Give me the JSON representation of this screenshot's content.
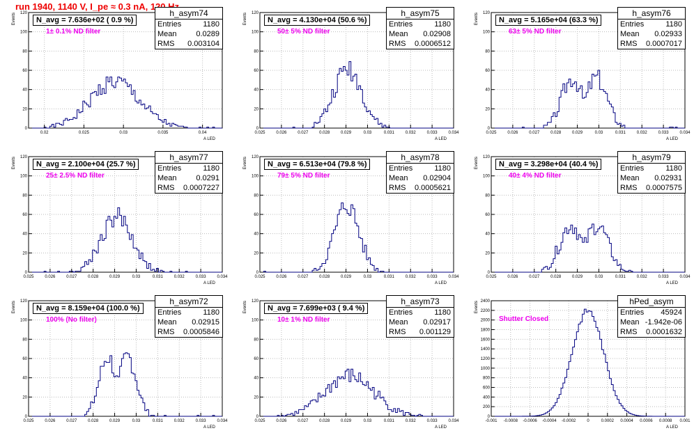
{
  "page_title": "run 1940,  1140 V, I_pe ≈ 0.3 nA, 120 Hz",
  "stats_labels": {
    "entries": "Entries",
    "mean": "Mean",
    "rms": "RMS"
  },
  "colors": {
    "histogram": "#000080",
    "title": "#ee0000",
    "note": "#ee00ee",
    "grid": "#bbbbbb"
  },
  "panels": [
    {
      "name": "h_asym74",
      "navg": "N_avg = 7.636e+02 ( 0.9 %)",
      "filter": "1± 0.1% ND filter",
      "entries": "1180",
      "mean": "0.0289",
      "rms": "0.003104"
    },
    {
      "name": "h_asym75",
      "navg": "N_avg = 4.130e+04 (50.6 %)",
      "filter": "50± 5% ND filter",
      "entries": "1180",
      "mean": "0.02908",
      "rms": "0.0006512"
    },
    {
      "name": "h_asym76",
      "navg": "N_avg = 5.165e+04 (63.3 %)",
      "filter": "63± 5% ND filter",
      "entries": "1180",
      "mean": "0.02933",
      "rms": "0.0007017"
    },
    {
      "name": "h_asym77",
      "navg": "N_avg = 2.100e+04 (25.7 %)",
      "filter": "25± 2.5% ND filter",
      "entries": "1180",
      "mean": "0.0291",
      "rms": "0.0007227"
    },
    {
      "name": "h_asym78",
      "navg": "N_avg = 6.513e+04 (79.8 %)",
      "filter": "79± 5% ND filter",
      "entries": "1180",
      "mean": "0.02904",
      "rms": "0.0005621"
    },
    {
      "name": "h_asym79",
      "navg": "N_avg = 3.298e+04 (40.4 %)",
      "filter": "40± 4% ND filter",
      "entries": "1180",
      "mean": "0.02931",
      "rms": "0.0007575"
    },
    {
      "name": "h_asym72",
      "navg": "N_avg = 8.159e+04 (100.0 %)",
      "filter": "100% (No filter)",
      "entries": "1180",
      "mean": "0.02915",
      "rms": "0.0005846"
    },
    {
      "name": "h_asym73",
      "navg": "N_avg = 7.699e+03 ( 9.4 %)",
      "filter": "10± 1% ND filter",
      "entries": "1180",
      "mean": "0.02917",
      "rms": "0.001129"
    },
    {
      "name": "hPed_asym",
      "navg": "",
      "filter": "Shutter Closed",
      "entries": "45924",
      "mean": "-1.942e-06",
      "rms": "0.0001632"
    }
  ],
  "chart_data": [
    {
      "type": "histogram",
      "name": "h_asym74",
      "ylabel": "Events",
      "xlabel": "A_LED",
      "xlim": [
        0.018,
        0.0425
      ],
      "ylim": [
        0,
        120
      ],
      "xticks": [
        0.02,
        0.025,
        0.03,
        0.035,
        0.04
      ],
      "xticklabels": [
        "0.02",
        "0.025",
        "0.03",
        "0.035",
        "0.04"
      ],
      "yticks": [
        0,
        20,
        40,
        60,
        80,
        100,
        120
      ],
      "grid": true,
      "dist": "gauss",
      "mean": 0.0289,
      "sigma": 0.0031,
      "peak": 48,
      "seed": 1
    },
    {
      "type": "histogram",
      "name": "h_asym75",
      "ylabel": "Events",
      "xlabel": "A_LED",
      "xlim": [
        0.025,
        0.034
      ],
      "ylim": [
        0,
        120
      ],
      "xticks": [
        0.025,
        0.026,
        0.027,
        0.028,
        0.029,
        0.03,
        0.031,
        0.032,
        0.033,
        0.034
      ],
      "xticklabels": [
        "0.025",
        "0.026",
        "0.027",
        "0.028",
        "0.029",
        "0.03",
        "0.031",
        "0.032",
        "0.033",
        "0.034"
      ],
      "yticks": [
        0,
        20,
        40,
        60,
        80,
        100,
        120
      ],
      "grid": true,
      "dist": "gauss",
      "mean": 0.02908,
      "sigma": 0.00065,
      "peak": 62,
      "seed": 2
    },
    {
      "type": "histogram",
      "name": "h_asym76",
      "ylabel": "Events",
      "xlabel": "A_LED",
      "xlim": [
        0.025,
        0.034
      ],
      "ylim": [
        0,
        120
      ],
      "xticks": [
        0.025,
        0.026,
        0.027,
        0.028,
        0.029,
        0.03,
        0.031,
        0.032,
        0.033,
        0.034
      ],
      "xticklabels": [
        "0.025",
        "0.026",
        "0.027",
        "0.028",
        "0.029",
        "0.03",
        "0.031",
        "0.032",
        "0.033",
        "0.034"
      ],
      "yticks": [
        0,
        20,
        40,
        60,
        80,
        100,
        120
      ],
      "grid": true,
      "dist": "double",
      "mean": 0.02933,
      "sigma": 0.0007,
      "peak": 55,
      "seed": 3
    },
    {
      "type": "histogram",
      "name": "h_asym77",
      "ylabel": "Events",
      "xlabel": "A_LED",
      "xlim": [
        0.025,
        0.034
      ],
      "ylim": [
        0,
        120
      ],
      "xticks": [
        0.025,
        0.026,
        0.027,
        0.028,
        0.029,
        0.03,
        0.031,
        0.032,
        0.033,
        0.034
      ],
      "xticklabels": [
        "0.025",
        "0.026",
        "0.027",
        "0.028",
        "0.029",
        "0.03",
        "0.031",
        "0.032",
        "0.033",
        "0.034"
      ],
      "yticks": [
        0,
        20,
        40,
        60,
        80,
        100,
        120
      ],
      "grid": true,
      "dist": "gauss",
      "mean": 0.0291,
      "sigma": 0.00072,
      "peak": 58,
      "seed": 4
    },
    {
      "type": "histogram",
      "name": "h_asym78",
      "ylabel": "Events",
      "xlabel": "A_LED",
      "xlim": [
        0.025,
        0.034
      ],
      "ylim": [
        0,
        120
      ],
      "xticks": [
        0.025,
        0.026,
        0.027,
        0.028,
        0.029,
        0.03,
        0.031,
        0.032,
        0.033,
        0.034
      ],
      "xticklabels": [
        "0.025",
        "0.026",
        "0.027",
        "0.028",
        "0.029",
        "0.03",
        "0.031",
        "0.032",
        "0.033",
        "0.034"
      ],
      "yticks": [
        0,
        20,
        40,
        60,
        80,
        100,
        120
      ],
      "grid": true,
      "dist": "gauss",
      "mean": 0.02904,
      "sigma": 0.00056,
      "peak": 70,
      "seed": 5
    },
    {
      "type": "histogram",
      "name": "h_asym79",
      "ylabel": "Events",
      "xlabel": "A_LED",
      "xlim": [
        0.025,
        0.034
      ],
      "ylim": [
        0,
        120
      ],
      "xticks": [
        0.025,
        0.026,
        0.027,
        0.028,
        0.029,
        0.03,
        0.031,
        0.032,
        0.033,
        0.034
      ],
      "xticklabels": [
        "0.025",
        "0.026",
        "0.027",
        "0.028",
        "0.029",
        "0.03",
        "0.031",
        "0.032",
        "0.033",
        "0.034"
      ],
      "yticks": [
        0,
        20,
        40,
        60,
        80,
        100,
        120
      ],
      "grid": true,
      "dist": "double",
      "mean": 0.02931,
      "sigma": 0.00075,
      "peak": 52,
      "seed": 6
    },
    {
      "type": "histogram",
      "name": "h_asym72",
      "ylabel": "Events",
      "xlabel": "A_LED",
      "xlim": [
        0.025,
        0.034
      ],
      "ylim": [
        0,
        120
      ],
      "xticks": [
        0.025,
        0.026,
        0.027,
        0.028,
        0.029,
        0.03,
        0.031,
        0.032,
        0.033,
        0.034
      ],
      "xticklabels": [
        "0.025",
        "0.026",
        "0.027",
        "0.028",
        "0.029",
        "0.03",
        "0.031",
        "0.032",
        "0.033",
        "0.034"
      ],
      "yticks": [
        0,
        20,
        40,
        60,
        80,
        100,
        120
      ],
      "grid": true,
      "dist": "double",
      "mean": 0.02915,
      "sigma": 0.00058,
      "peak": 65,
      "seed": 7
    },
    {
      "type": "histogram",
      "name": "h_asym73",
      "ylabel": "Events",
      "xlabel": "A_LED",
      "xlim": [
        0.025,
        0.034
      ],
      "ylim": [
        0,
        120
      ],
      "xticks": [
        0.025,
        0.026,
        0.027,
        0.028,
        0.029,
        0.03,
        0.031,
        0.032,
        0.033,
        0.034
      ],
      "xticklabels": [
        "0.025",
        "0.026",
        "0.027",
        "0.028",
        "0.029",
        "0.03",
        "0.031",
        "0.032",
        "0.033",
        "0.034"
      ],
      "yticks": [
        0,
        20,
        40,
        60,
        80,
        100,
        120
      ],
      "grid": true,
      "dist": "gauss",
      "mean": 0.02917,
      "sigma": 0.00113,
      "peak": 42,
      "seed": 8
    },
    {
      "type": "histogram",
      "name": "hPed_asym",
      "ylabel": "Events",
      "xlabel": "A_LED",
      "xlim": [
        -0.001,
        0.001
      ],
      "ylim": [
        0,
        2400
      ],
      "xticks": [
        -0.001,
        -0.0008,
        -0.0006,
        -0.0004,
        -0.0002,
        0,
        0.0002,
        0.0004,
        0.0006,
        0.0008,
        0.001
      ],
      "xticklabels": [
        "-0.001",
        "-0.0008",
        "-0.0006",
        "-0.0004",
        "-0.0002",
        "0",
        "0.0002",
        "0.0004",
        "0.0006",
        "0.0008",
        "0.001"
      ],
      "yticks": [
        0,
        200,
        400,
        600,
        800,
        1000,
        1200,
        1400,
        1600,
        1800,
        2000,
        2200,
        2400
      ],
      "grid": true,
      "dist": "smooth",
      "mean": -2e-06,
      "sigma": 0.000163,
      "peak": 2200,
      "seed": 9
    }
  ]
}
